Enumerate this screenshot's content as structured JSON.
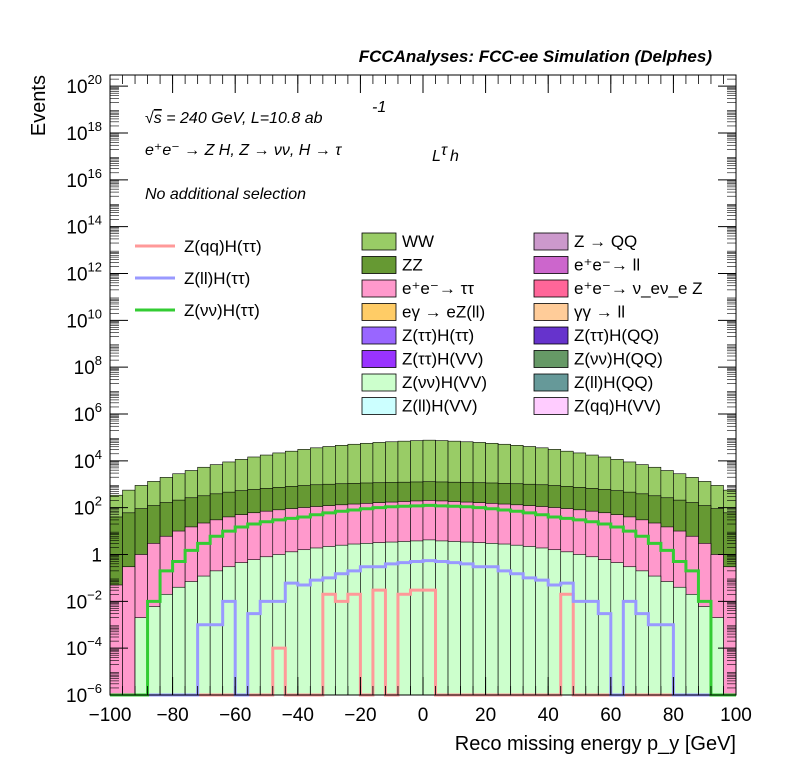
{
  "chart_data": {
    "type": "histogram (stacked, log y)",
    "title": "FCCAnalyses: FCC-ee Simulation (Delphes)",
    "xlabel": "Reco missing energy p_y [GeV]",
    "ylabel": "Events",
    "xlim": [
      -100,
      100
    ],
    "ylim": [
      1e-06,
      3e+20
    ],
    "y_scale": "log",
    "bin_width": 4,
    "x_ticks": [
      -100,
      -80,
      -60,
      -40,
      -20,
      0,
      20,
      40,
      60,
      80,
      100
    ],
    "x_tick_labels": [
      "−100",
      "−80",
      "−60",
      "−40",
      "−20",
      "0",
      "20",
      "40",
      "60",
      "80",
      "100"
    ],
    "y_ticks": [
      {
        "value": 1e-06,
        "base": "10",
        "exp": "−6"
      },
      {
        "value": 0.0001,
        "base": "10",
        "exp": "−4"
      },
      {
        "value": 0.01,
        "base": "10",
        "exp": "−2"
      },
      {
        "value": 1,
        "base": "1",
        "exp": ""
      },
      {
        "value": 100.0,
        "base": "10",
        "exp": "2"
      },
      {
        "value": 10000.0,
        "base": "10",
        "exp": "4"
      },
      {
        "value": 1000000.0,
        "base": "10",
        "exp": "6"
      },
      {
        "value": 100000000.0,
        "base": "10",
        "exp": "8"
      },
      {
        "value": 10000000000.0,
        "base": "10",
        "exp": "10"
      },
      {
        "value": 1000000000000.0,
        "base": "10",
        "exp": "12"
      },
      {
        "value": 100000000000000.0,
        "base": "10",
        "exp": "14"
      },
      {
        "value": 1e+16,
        "base": "10",
        "exp": "16"
      },
      {
        "value": 1e+18,
        "base": "10",
        "exp": "18"
      },
      {
        "value": 1e+20,
        "base": "10",
        "exp": "20"
      }
    ],
    "annotations": {
      "energy_prefix": "s",
      "energy_text": " = 240 GeV, L=10.8 ab",
      "energy_sup": "-1",
      "process": "e⁺e⁻ → Z H, Z → νν, H → τ",
      "process_sub1": "L",
      "process_tau": "τ",
      "process_sub2": "h",
      "selection": "No additional selection"
    },
    "legend_placement": "upper middle-right",
    "stack_order_bottom_to_top": [
      "Z(νν)H(VV)",
      "ee→ττ",
      "ZZ",
      "WW"
    ],
    "stacked_series": [
      {
        "name": "Z(νν)H(VV)",
        "color": "#ccffcc",
        "values": [
          0,
          0,
          0.002,
          0.006,
          0.02,
          0.04,
          0.07,
          0.12,
          0.2,
          0.3,
          0.45,
          0.6,
          0.8,
          1.0,
          1.3,
          1.6,
          1.9,
          2.2,
          2.5,
          2.8,
          3.0,
          3.2,
          3.4,
          3.6,
          3.8,
          4.2,
          3.8,
          3.6,
          3.4,
          3.2,
          3.0,
          2.8,
          2.5,
          2.2,
          1.9,
          1.6,
          1.3,
          1.0,
          0.8,
          0.6,
          0.45,
          0.3,
          0.2,
          0.12,
          0.07,
          0.04,
          0.02,
          0.006,
          0.002,
          0
        ]
      },
      {
        "name": "e⁺e⁻→ ττ",
        "color": "#ff99cc",
        "values": [
          0.05,
          0.3,
          1.0,
          3.0,
          6.0,
          10.0,
          15.0,
          22.0,
          30.0,
          40.0,
          50.0,
          60.0,
          70.0,
          80.0,
          90.0,
          100.0,
          110.0,
          120.0,
          130.0,
          140.0,
          150.0,
          160.0,
          170.0,
          180.0,
          190.0,
          200.0,
          190.0,
          180.0,
          170.0,
          160.0,
          150.0,
          140.0,
          130.0,
          120.0,
          110.0,
          100.0,
          90.0,
          80.0,
          70.0,
          60.0,
          50.0,
          40.0,
          30.0,
          22.0,
          15.0,
          10.0,
          6.0,
          3.0,
          1.0,
          0.3
        ]
      },
      {
        "name": "ZZ",
        "color": "#669933",
        "values": [
          40,
          60,
          90,
          120,
          160,
          200,
          250,
          300,
          360,
          420,
          480,
          540,
          600,
          660,
          720,
          780,
          840,
          880,
          920,
          950,
          980,
          1000,
          1020,
          1040,
          1060,
          1080,
          1060,
          1040,
          1020,
          1000,
          980,
          950,
          920,
          880,
          840,
          780,
          720,
          660,
          600,
          540,
          480,
          420,
          360,
          300,
          250,
          200,
          160,
          120,
          90,
          60
        ]
      },
      {
        "name": "WW",
        "color": "#99cc66",
        "values": [
          300,
          500,
          800,
          1200,
          1800,
          2600,
          3600,
          5000,
          6500,
          8500,
          11000,
          14000,
          17000,
          21000,
          25000,
          30000,
          35000,
          40000,
          45000,
          50000,
          55000,
          60000,
          64000,
          68000,
          72000,
          75000,
          72000,
          68000,
          64000,
          60000,
          55000,
          50000,
          45000,
          40000,
          35000,
          30000,
          25000,
          21000,
          17000,
          14000,
          11000,
          8500,
          6500,
          5000,
          3600,
          2600,
          1800,
          1200,
          800,
          500
        ]
      }
    ],
    "overlay_series": [
      {
        "name": "Z(qq)H(ττ)",
        "color": "#ff9999",
        "values": [
          0,
          0,
          0,
          0,
          0,
          0,
          0,
          0,
          0,
          0,
          0,
          0,
          0,
          0.0001,
          0,
          0,
          0,
          0.02,
          0.01,
          0.02,
          0,
          0.03,
          0,
          0.02,
          0.03,
          0.03,
          0,
          0,
          0,
          0,
          0,
          0,
          0,
          0,
          0,
          0,
          0.02,
          0,
          0,
          0,
          0,
          0,
          0,
          0,
          0,
          0,
          0,
          0,
          0,
          0
        ]
      },
      {
        "name": "Z(ll)H(ττ)",
        "color": "#9999ff",
        "values": [
          0,
          0,
          0,
          0,
          0,
          0,
          0,
          0.001,
          0.001,
          0.01,
          0,
          0.003,
          0.01,
          0.01,
          0.06,
          0.05,
          0.08,
          0.1,
          0.15,
          0.2,
          0.3,
          0.3,
          0.4,
          0.45,
          0.5,
          0.55,
          0.5,
          0.45,
          0.4,
          0.3,
          0.3,
          0.2,
          0.15,
          0.1,
          0.08,
          0.05,
          0.06,
          0.01,
          0.01,
          0.003,
          0,
          0.01,
          0.003,
          0.001,
          0.001,
          0,
          0,
          0,
          0,
          0
        ]
      },
      {
        "name": "Z(νν)H(ττ)",
        "color": "#33cc33",
        "values": [
          0,
          0,
          0,
          0.01,
          0.2,
          0.5,
          1.5,
          3,
          6,
          10,
          15,
          20,
          25,
          30,
          35,
          40,
          50,
          60,
          70,
          80,
          90,
          100,
          110,
          115,
          120,
          125,
          120,
          115,
          110,
          100,
          90,
          80,
          70,
          60,
          50,
          40,
          35,
          30,
          25,
          20,
          15,
          10,
          6,
          3,
          1.5,
          0.5,
          0.2,
          0.01,
          0,
          0
        ]
      }
    ],
    "legend_entries": [
      {
        "name": "WW",
        "color": "#99cc66"
      },
      {
        "name": "ZZ",
        "color": "#669933"
      },
      {
        "name": "e⁺e⁻→ ττ",
        "color": "#ff99cc"
      },
      {
        "name": "eγ → eZ(ll)",
        "color": "#ffcc66"
      },
      {
        "name": "Z(ττ)H(ττ)",
        "color": "#9966ff"
      },
      {
        "name": "Z(ττ)H(VV)",
        "color": "#9933ff"
      },
      {
        "name": "Z(νν)H(VV)",
        "color": "#ccffcc"
      },
      {
        "name": "Z(ll)H(VV)",
        "color": "#ccffff"
      },
      {
        "name": "Z → QQ",
        "color": "#cc99cc"
      },
      {
        "name": "e⁺e⁻→ ll",
        "color": "#cc66cc"
      },
      {
        "name": "e⁺e⁻→ ν_eν_e Z",
        "color": "#ff6699"
      },
      {
        "name": "γγ → ll",
        "color": "#ffcc99"
      },
      {
        "name": "Z(ττ)H(QQ)",
        "color": "#6633cc"
      },
      {
        "name": "Z(νν)H(QQ)",
        "color": "#669966"
      },
      {
        "name": "Z(ll)H(QQ)",
        "color": "#669999"
      },
      {
        "name": "Z(qq)H(VV)",
        "color": "#ffccff"
      }
    ],
    "line_legend_entries": [
      {
        "name": "Z(qq)H(ττ)",
        "color": "#ff9999"
      },
      {
        "name": "Z(ll)H(ττ)",
        "color": "#9999ff"
      },
      {
        "name": "Z(νν)H(ττ)",
        "color": "#33cc33"
      }
    ]
  }
}
